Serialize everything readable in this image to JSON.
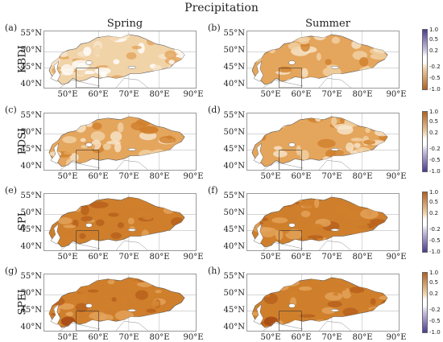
{
  "title": "Precipitation",
  "columns": [
    "Spring",
    "Summer"
  ],
  "rows": [
    "KBDI",
    "PDSI",
    "SPI",
    "SPEI"
  ],
  "panels": [
    {
      "letter": "(a)",
      "index": "KBDI",
      "season": "Spring",
      "tone": "weak"
    },
    {
      "letter": "(b)",
      "index": "KBDI",
      "season": "Summer",
      "tone": "moderate"
    },
    {
      "letter": "(c)",
      "index": "PDSI",
      "season": "Spring",
      "tone": "moderate"
    },
    {
      "letter": "(d)",
      "index": "PDSI",
      "season": "Summer",
      "tone": "moderate"
    },
    {
      "letter": "(e)",
      "index": "SPI",
      "season": "Spring",
      "tone": "strong"
    },
    {
      "letter": "(f)",
      "index": "SPI",
      "season": "Summer",
      "tone": "strong"
    },
    {
      "letter": "(g)",
      "index": "SPEI",
      "season": "Spring",
      "tone": "strong"
    },
    {
      "letter": "(h)",
      "index": "SPEI",
      "season": "Summer",
      "tone": "strong"
    }
  ],
  "lat_labels": [
    "55°N",
    "50°N",
    "45°N",
    "40°N"
  ],
  "lon_labels": [
    "50°E",
    "60°E",
    "70°E",
    "80°E",
    "90°E"
  ],
  "colorbar_kbdi": [
    "1.0",
    "0.5",
    "0.2",
    "-0.2",
    "-0.5",
    "-1.0"
  ],
  "colorbar_other": [
    "1.0",
    "0.5",
    "0.2",
    "-0.2",
    "-0.5",
    "-1.0"
  ],
  "colors": {
    "weak": "#f1d3a8",
    "moderate": "#e4a55c",
    "strong": "#cf7f2c",
    "dark": "#b55f1c",
    "light": "#f7e6cd",
    "purple_dark": "#4b3b8f",
    "purple_light": "#cfc7e6"
  }
}
